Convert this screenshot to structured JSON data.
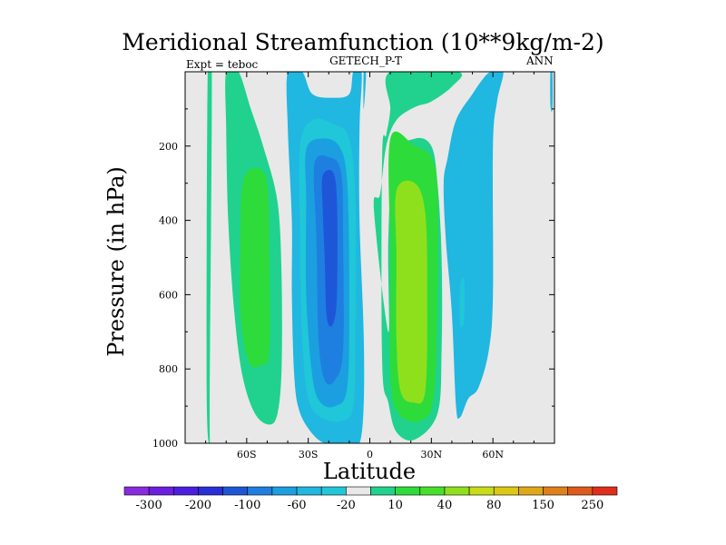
{
  "chart_data": {
    "type": "contour",
    "title": "Meridional Streamfunction (10**9kg/m-2)",
    "left_label": "Expt = teboc",
    "center_label": "GETECH_P-T",
    "right_label": "ANN",
    "xlabel": "Latitude",
    "ylabel": "Pressure (in hPa)",
    "xlim": [
      -90,
      90
    ],
    "ylim": [
      1000,
      0
    ],
    "x_ticks": [
      {
        "value": -60,
        "label": "60S"
      },
      {
        "value": -30,
        "label": "30S"
      },
      {
        "value": 0,
        "label": "0"
      },
      {
        "value": 30,
        "label": "30N"
      },
      {
        "value": 60,
        "label": "60N"
      }
    ],
    "y_ticks": [
      {
        "value": 200,
        "label": "200"
      },
      {
        "value": 400,
        "label": "400"
      },
      {
        "value": 600,
        "label": "600"
      },
      {
        "value": 800,
        "label": "800"
      },
      {
        "value": 1000,
        "label": "1000"
      }
    ],
    "colorbar": {
      "colors": [
        "#8a2be2",
        "#6c1fe0",
        "#4b1fe0",
        "#2a2ed8",
        "#1e56d8",
        "#1f7fe0",
        "#1b9fe0",
        "#20b7e0",
        "#1fc7d8",
        "#e8e8e8",
        "#20d28e",
        "#2ddc3a",
        "#46e02a",
        "#8fe01c",
        "#c8dc18",
        "#dcc810",
        "#e0a818",
        "#e0801c",
        "#e05a1c",
        "#e02e1c"
      ],
      "labels": [
        "-300",
        "-200",
        "-100",
        "-60",
        "-20",
        "10",
        "40",
        "80",
        "150",
        "250"
      ]
    },
    "fields": [
      {
        "level": 10,
        "color": "#20d28e",
        "points": [
          [
            -78,
            1000
          ],
          [
            -78,
            850
          ],
          [
            -77,
            0
          ],
          [
            -79,
            0
          ],
          [
            -79.5,
            850
          ]
        ]
      },
      {
        "level": 10,
        "color": "#20d28e",
        "points": [
          [
            -70,
            0
          ],
          [
            -64,
            0
          ],
          [
            -58,
            100
          ],
          [
            -52,
            200
          ],
          [
            -45,
            350
          ],
          [
            -43,
            550
          ],
          [
            -43,
            800
          ],
          [
            -45,
            920
          ],
          [
            -49,
            950
          ],
          [
            -56,
            920
          ],
          [
            -62,
            820
          ],
          [
            -66,
            650
          ],
          [
            -69,
            400
          ],
          [
            -70,
            150
          ]
        ]
      },
      {
        "level": 40,
        "color": "#2ddc3a",
        "points": [
          [
            -62,
            300
          ],
          [
            -56,
            260
          ],
          [
            -50,
            300
          ],
          [
            -49,
            500
          ],
          [
            -49,
            750
          ],
          [
            -53,
            790
          ],
          [
            -59,
            780
          ],
          [
            -63,
            650
          ],
          [
            -63,
            450
          ]
        ]
      },
      {
        "level": 10,
        "color": "#20d28e",
        "points": [
          [
            2,
            370
          ],
          [
            5,
            330
          ],
          [
            8,
            200
          ],
          [
            13,
            130
          ],
          [
            22,
            95
          ],
          [
            30,
            80
          ],
          [
            40,
            40
          ],
          [
            43,
            0
          ],
          [
            10,
            0
          ],
          [
            10,
            100
          ],
          [
            8,
            170
          ],
          [
            6,
            230
          ],
          [
            6,
            780
          ],
          [
            9,
            890
          ],
          [
            13,
            970
          ],
          [
            22,
            990
          ],
          [
            33,
            920
          ],
          [
            35,
            750
          ],
          [
            35,
            500
          ],
          [
            33,
            300
          ],
          [
            30,
            200
          ],
          [
            22,
            180
          ],
          [
            12,
            230
          ],
          [
            9,
            450
          ],
          [
            9,
            700
          ]
        ]
      },
      {
        "level": 40,
        "color": "#2ddc3a",
        "points": [
          [
            10,
            180
          ],
          [
            22,
            200
          ],
          [
            30,
            230
          ],
          [
            33,
            320
          ],
          [
            33,
            600
          ],
          [
            31,
            880
          ],
          [
            24,
            940
          ],
          [
            14,
            920
          ],
          [
            10,
            820
          ],
          [
            10,
            500
          ]
        ]
      },
      {
        "level": 80,
        "color": "#8fe01c",
        "points": [
          [
            13,
            320
          ],
          [
            22,
            300
          ],
          [
            27,
            380
          ],
          [
            28,
            600
          ],
          [
            27,
            860
          ],
          [
            21,
            890
          ],
          [
            15,
            860
          ],
          [
            13,
            720
          ],
          [
            13,
            500
          ]
        ]
      },
      {
        "level": -10,
        "color": "#20b7e0",
        "points": [
          [
            -40,
            0
          ],
          [
            -33,
            0
          ],
          [
            -28,
            60
          ],
          [
            -18,
            70
          ],
          [
            -10,
            60
          ],
          [
            -8,
            0
          ],
          [
            -4,
            0
          ],
          [
            -5,
            150
          ],
          [
            -5,
            400
          ],
          [
            -3,
            700
          ],
          [
            -3,
            900
          ],
          [
            -5,
            1000
          ],
          [
            -10,
            1000
          ],
          [
            -22,
            1000
          ],
          [
            -30,
            960
          ],
          [
            -35,
            900
          ],
          [
            -37,
            800
          ],
          [
            -38,
            600
          ],
          [
            -38,
            400
          ],
          [
            -40,
            150
          ]
        ]
      },
      {
        "level": -10,
        "color": "#20b7e0",
        "points": [
          [
            -3,
            0
          ],
          [
            -2,
            0
          ],
          [
            -2,
            30
          ],
          [
            -3,
            100
          ]
        ]
      },
      {
        "level": -20,
        "color": "#1fc7d8",
        "points": [
          [
            -34,
            200
          ],
          [
            -28,
            130
          ],
          [
            -18,
            140
          ],
          [
            -10,
            180
          ],
          [
            -7,
            350
          ],
          [
            -7,
            700
          ],
          [
            -8,
            900
          ],
          [
            -14,
            940
          ],
          [
            -24,
            930
          ],
          [
            -30,
            880
          ],
          [
            -33,
            720
          ],
          [
            -34,
            450
          ]
        ]
      },
      {
        "level": -40,
        "color": "#1b9fe0",
        "points": [
          [
            -31,
            210
          ],
          [
            -24,
            180
          ],
          [
            -15,
            200
          ],
          [
            -11,
            300
          ],
          [
            -10,
            600
          ],
          [
            -11,
            850
          ],
          [
            -17,
            900
          ],
          [
            -24,
            890
          ],
          [
            -28,
            820
          ],
          [
            -31,
            600
          ],
          [
            -31,
            350
          ]
        ]
      },
      {
        "level": -60,
        "color": "#1f7fe0",
        "points": [
          [
            -27,
            250
          ],
          [
            -20,
            230
          ],
          [
            -14,
            270
          ],
          [
            -13,
            450
          ],
          [
            -13,
            750
          ],
          [
            -17,
            830
          ],
          [
            -22,
            830
          ],
          [
            -25,
            720
          ],
          [
            -26,
            450
          ]
        ]
      },
      {
        "level": -80,
        "color": "#1e56d8",
        "points": [
          [
            -23,
            280
          ],
          [
            -18,
            270
          ],
          [
            -16,
            350
          ],
          [
            -16,
            600
          ],
          [
            -18,
            680
          ],
          [
            -21,
            660
          ],
          [
            -22,
            500
          ],
          [
            -23,
            360
          ]
        ]
      },
      {
        "level": -10,
        "color": "#20b7e0",
        "points": [
          [
            59,
            0
          ],
          [
            65,
            0
          ],
          [
            62,
            80
          ],
          [
            60,
            200
          ],
          [
            60,
            600
          ],
          [
            58,
            750
          ],
          [
            53,
            850
          ],
          [
            48,
            880
          ],
          [
            44,
            930
          ],
          [
            42,
            900
          ],
          [
            40,
            650
          ],
          [
            37,
            450
          ],
          [
            36,
            300
          ],
          [
            38,
            230
          ],
          [
            42,
            130
          ],
          [
            50,
            60
          ],
          [
            55,
            20
          ]
        ]
      },
      {
        "level": -10,
        "color": "#1fc7d8",
        "points": [
          [
            44,
            580
          ],
          [
            46,
            560
          ],
          [
            46,
            670
          ],
          [
            44,
            680
          ]
        ]
      },
      {
        "level": -10,
        "color": "#20b7e0",
        "points": [
          [
            88,
            0
          ],
          [
            89,
            0
          ],
          [
            89,
            100
          ],
          [
            88,
            90
          ]
        ]
      }
    ]
  }
}
